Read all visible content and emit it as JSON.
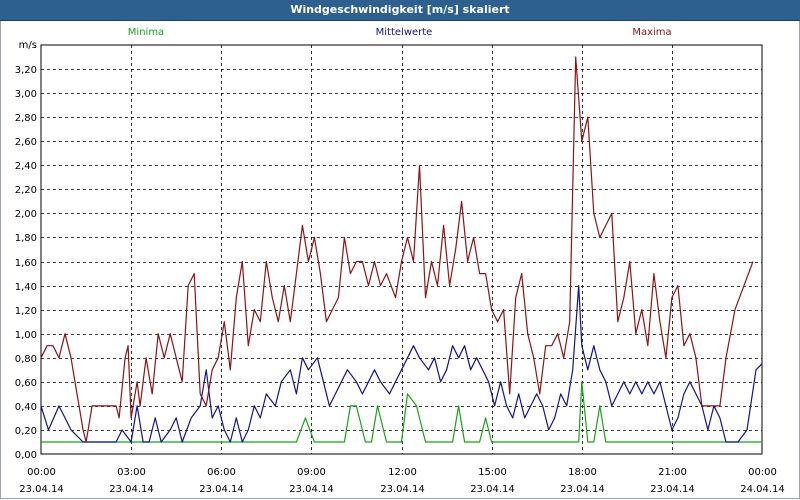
{
  "window": {
    "title": "Windgeschwindigkeit [m/s] skaliert"
  },
  "chart_data": {
    "type": "line",
    "title": "Windgeschwindigkeit [m/s] skaliert",
    "ylabel": "m/s",
    "xlabel": "",
    "ylim": [
      0,
      3.4
    ],
    "xlim": [
      0,
      24
    ],
    "grid": true,
    "x_unit": "hours from 23.04.14 00:00",
    "x_ticks": [
      {
        "x": 0,
        "time": "00:00",
        "date": "23.04.14"
      },
      {
        "x": 3,
        "time": "03:00",
        "date": "23.04.14"
      },
      {
        "x": 6,
        "time": "06:00",
        "date": "23.04.14"
      },
      {
        "x": 9,
        "time": "09:00",
        "date": "23.04.14"
      },
      {
        "x": 12,
        "time": "12:00",
        "date": "23.04.14"
      },
      {
        "x": 15,
        "time": "15:00",
        "date": "23.04.14"
      },
      {
        "x": 18,
        "time": "18:00",
        "date": "23.04.14"
      },
      {
        "x": 21,
        "time": "21:00",
        "date": "23.04.14"
      },
      {
        "x": 24,
        "time": "00:00",
        "date": "24.04.14"
      }
    ],
    "y_ticks": [
      "0,00",
      "0,20",
      "0,40",
      "0,60",
      "0,80",
      "1,00",
      "1,20",
      "1,40",
      "1,60",
      "1,80",
      "2,00",
      "2,20",
      "2,40",
      "2,60",
      "2,80",
      "3,00",
      "3,20"
    ],
    "legend": [
      {
        "name": "Minima",
        "color": "#19a319",
        "position": "top-left"
      },
      {
        "name": "Mittelwerte",
        "color": "#14148c",
        "position": "top-center"
      },
      {
        "name": "Maxima",
        "color": "#8c1414",
        "position": "top-right"
      }
    ],
    "series": [
      {
        "name": "Minima",
        "color": "#19a319",
        "points": [
          [
            0,
            0.1
          ],
          [
            8.5,
            0.1
          ],
          [
            8.8,
            0.3
          ],
          [
            9.1,
            0.1
          ],
          [
            10.1,
            0.1
          ],
          [
            10.3,
            0.4
          ],
          [
            10.5,
            0.4
          ],
          [
            10.8,
            0.1
          ],
          [
            11.0,
            0.1
          ],
          [
            11.2,
            0.4
          ],
          [
            11.5,
            0.1
          ],
          [
            12.0,
            0.1
          ],
          [
            12.2,
            0.5
          ],
          [
            12.5,
            0.4
          ],
          [
            12.8,
            0.1
          ],
          [
            13.7,
            0.1
          ],
          [
            13.9,
            0.4
          ],
          [
            14.1,
            0.1
          ],
          [
            14.6,
            0.1
          ],
          [
            14.8,
            0.3
          ],
          [
            15.0,
            0.1
          ],
          [
            17.9,
            0.1
          ],
          [
            18.0,
            0.6
          ],
          [
            18.2,
            0.1
          ],
          [
            18.4,
            0.1
          ],
          [
            18.6,
            0.4
          ],
          [
            18.8,
            0.1
          ],
          [
            24,
            0.1
          ]
        ]
      },
      {
        "name": "Mittelwerte",
        "color": "#14148c",
        "points": [
          [
            0,
            0.4
          ],
          [
            0.25,
            0.2
          ],
          [
            0.6,
            0.4
          ],
          [
            1.0,
            0.2
          ],
          [
            1.4,
            0.1
          ],
          [
            2.5,
            0.1
          ],
          [
            2.7,
            0.2
          ],
          [
            3.0,
            0.1
          ],
          [
            3.2,
            0.4
          ],
          [
            3.4,
            0.1
          ],
          [
            3.6,
            0.1
          ],
          [
            3.8,
            0.3
          ],
          [
            4.0,
            0.1
          ],
          [
            4.3,
            0.2
          ],
          [
            4.5,
            0.3
          ],
          [
            4.7,
            0.1
          ],
          [
            5.0,
            0.3
          ],
          [
            5.3,
            0.4
          ],
          [
            5.5,
            0.7
          ],
          [
            5.7,
            0.3
          ],
          [
            5.9,
            0.4
          ],
          [
            6.1,
            0.2
          ],
          [
            6.3,
            0.1
          ],
          [
            6.5,
            0.3
          ],
          [
            6.7,
            0.1
          ],
          [
            6.9,
            0.2
          ],
          [
            7.1,
            0.4
          ],
          [
            7.3,
            0.3
          ],
          [
            7.5,
            0.5
          ],
          [
            7.8,
            0.4
          ],
          [
            8.0,
            0.6
          ],
          [
            8.3,
            0.7
          ],
          [
            8.5,
            0.5
          ],
          [
            8.7,
            0.8
          ],
          [
            8.9,
            0.7
          ],
          [
            9.2,
            0.8
          ],
          [
            9.4,
            0.6
          ],
          [
            9.6,
            0.4
          ],
          [
            9.8,
            0.5
          ],
          [
            10.0,
            0.6
          ],
          [
            10.2,
            0.7
          ],
          [
            10.5,
            0.6
          ],
          [
            10.7,
            0.5
          ],
          [
            10.9,
            0.6
          ],
          [
            11.1,
            0.7
          ],
          [
            11.3,
            0.6
          ],
          [
            11.6,
            0.5
          ],
          [
            11.8,
            0.6
          ],
          [
            12.0,
            0.7
          ],
          [
            12.2,
            0.8
          ],
          [
            12.4,
            0.9
          ],
          [
            12.6,
            0.8
          ],
          [
            12.9,
            0.7
          ],
          [
            13.1,
            0.8
          ],
          [
            13.3,
            0.6
          ],
          [
            13.5,
            0.7
          ],
          [
            13.7,
            0.9
          ],
          [
            13.9,
            0.8
          ],
          [
            14.1,
            0.9
          ],
          [
            14.3,
            0.7
          ],
          [
            14.5,
            0.8
          ],
          [
            14.7,
            0.7
          ],
          [
            14.9,
            0.6
          ],
          [
            15.1,
            0.4
          ],
          [
            15.3,
            0.6
          ],
          [
            15.5,
            0.4
          ],
          [
            15.7,
            0.3
          ],
          [
            15.9,
            0.5
          ],
          [
            16.1,
            0.3
          ],
          [
            16.3,
            0.4
          ],
          [
            16.5,
            0.5
          ],
          [
            16.7,
            0.4
          ],
          [
            16.9,
            0.2
          ],
          [
            17.1,
            0.3
          ],
          [
            17.3,
            0.5
          ],
          [
            17.5,
            0.4
          ],
          [
            17.7,
            0.7
          ],
          [
            17.9,
            1.4
          ],
          [
            18.0,
            0.9
          ],
          [
            18.2,
            0.7
          ],
          [
            18.4,
            0.9
          ],
          [
            18.6,
            0.7
          ],
          [
            18.8,
            0.6
          ],
          [
            19.0,
            0.4
          ],
          [
            19.2,
            0.5
          ],
          [
            19.4,
            0.6
          ],
          [
            19.6,
            0.5
          ],
          [
            19.8,
            0.6
          ],
          [
            20.0,
            0.5
          ],
          [
            20.2,
            0.6
          ],
          [
            20.4,
            0.5
          ],
          [
            20.6,
            0.6
          ],
          [
            20.8,
            0.4
          ],
          [
            21.0,
            0.2
          ],
          [
            21.2,
            0.3
          ],
          [
            21.4,
            0.5
          ],
          [
            21.6,
            0.6
          ],
          [
            21.8,
            0.5
          ],
          [
            22.0,
            0.4
          ],
          [
            22.2,
            0.2
          ],
          [
            22.4,
            0.4
          ],
          [
            22.6,
            0.3
          ],
          [
            22.8,
            0.1
          ],
          [
            23.2,
            0.1
          ],
          [
            23.5,
            0.2
          ],
          [
            23.8,
            0.7
          ],
          [
            24,
            0.75
          ]
        ]
      },
      {
        "name": "Maxima",
        "color": "#8c1414",
        "points": [
          [
            0,
            0.8
          ],
          [
            0.2,
            0.9
          ],
          [
            0.4,
            0.9
          ],
          [
            0.6,
            0.8
          ],
          [
            0.8,
            1.0
          ],
          [
            1.0,
            0.8
          ],
          [
            1.2,
            0.5
          ],
          [
            1.4,
            0.2
          ],
          [
            1.5,
            0.1
          ],
          [
            1.7,
            0.4
          ],
          [
            2.5,
            0.4
          ],
          [
            2.6,
            0.3
          ],
          [
            2.8,
            0.8
          ],
          [
            2.9,
            0.9
          ],
          [
            3.0,
            0.3
          ],
          [
            3.2,
            0.6
          ],
          [
            3.3,
            0.4
          ],
          [
            3.5,
            0.8
          ],
          [
            3.7,
            0.5
          ],
          [
            3.9,
            1.0
          ],
          [
            4.1,
            0.8
          ],
          [
            4.3,
            1.0
          ],
          [
            4.5,
            0.8
          ],
          [
            4.7,
            0.6
          ],
          [
            4.9,
            1.4
          ],
          [
            5.1,
            1.5
          ],
          [
            5.3,
            0.5
          ],
          [
            5.5,
            0.4
          ],
          [
            5.7,
            0.7
          ],
          [
            5.9,
            0.8
          ],
          [
            6.1,
            1.1
          ],
          [
            6.3,
            0.7
          ],
          [
            6.5,
            1.3
          ],
          [
            6.7,
            1.6
          ],
          [
            6.9,
            0.9
          ],
          [
            7.1,
            1.2
          ],
          [
            7.3,
            1.1
          ],
          [
            7.5,
            1.6
          ],
          [
            7.7,
            1.3
          ],
          [
            7.9,
            1.1
          ],
          [
            8.1,
            1.4
          ],
          [
            8.3,
            1.1
          ],
          [
            8.5,
            1.5
          ],
          [
            8.7,
            1.9
          ],
          [
            8.9,
            1.6
          ],
          [
            9.1,
            1.8
          ],
          [
            9.3,
            1.5
          ],
          [
            9.5,
            1.1
          ],
          [
            9.7,
            1.2
          ],
          [
            9.9,
            1.3
          ],
          [
            10.1,
            1.8
          ],
          [
            10.3,
            1.5
          ],
          [
            10.5,
            1.6
          ],
          [
            10.7,
            1.6
          ],
          [
            10.9,
            1.4
          ],
          [
            11.1,
            1.6
          ],
          [
            11.3,
            1.4
          ],
          [
            11.5,
            1.5
          ],
          [
            11.8,
            1.3
          ],
          [
            12.0,
            1.6
          ],
          [
            12.2,
            1.8
          ],
          [
            12.4,
            1.6
          ],
          [
            12.6,
            2.4
          ],
          [
            12.8,
            1.3
          ],
          [
            13.0,
            1.6
          ],
          [
            13.2,
            1.4
          ],
          [
            13.4,
            1.9
          ],
          [
            13.6,
            1.4
          ],
          [
            13.8,
            1.7
          ],
          [
            14.0,
            2.1
          ],
          [
            14.2,
            1.6
          ],
          [
            14.4,
            1.8
          ],
          [
            14.6,
            1.5
          ],
          [
            14.8,
            1.5
          ],
          [
            15.0,
            1.2
          ],
          [
            15.2,
            1.1
          ],
          [
            15.4,
            1.2
          ],
          [
            15.6,
            0.5
          ],
          [
            15.8,
            1.3
          ],
          [
            16.0,
            1.5
          ],
          [
            16.2,
            1.0
          ],
          [
            16.4,
            0.8
          ],
          [
            16.6,
            0.5
          ],
          [
            16.8,
            0.9
          ],
          [
            17.0,
            0.9
          ],
          [
            17.2,
            1.0
          ],
          [
            17.4,
            0.8
          ],
          [
            17.6,
            1.1
          ],
          [
            17.8,
            3.3
          ],
          [
            18.0,
            2.6
          ],
          [
            18.2,
            2.8
          ],
          [
            18.4,
            2.0
          ],
          [
            18.6,
            1.8
          ],
          [
            18.8,
            1.9
          ],
          [
            19.0,
            2.0
          ],
          [
            19.2,
            1.1
          ],
          [
            19.4,
            1.3
          ],
          [
            19.6,
            1.6
          ],
          [
            19.8,
            1.0
          ],
          [
            20.0,
            1.2
          ],
          [
            20.2,
            0.9
          ],
          [
            20.4,
            1.5
          ],
          [
            20.6,
            1.1
          ],
          [
            20.8,
            0.8
          ],
          [
            21.0,
            1.3
          ],
          [
            21.2,
            1.4
          ],
          [
            21.4,
            0.9
          ],
          [
            21.6,
            1.0
          ],
          [
            21.8,
            0.8
          ],
          [
            22.0,
            0.4
          ],
          [
            22.6,
            0.4
          ],
          [
            22.8,
            0.8
          ],
          [
            23.1,
            1.2
          ],
          [
            23.4,
            1.4
          ],
          [
            23.7,
            1.6
          ]
        ]
      }
    ]
  }
}
